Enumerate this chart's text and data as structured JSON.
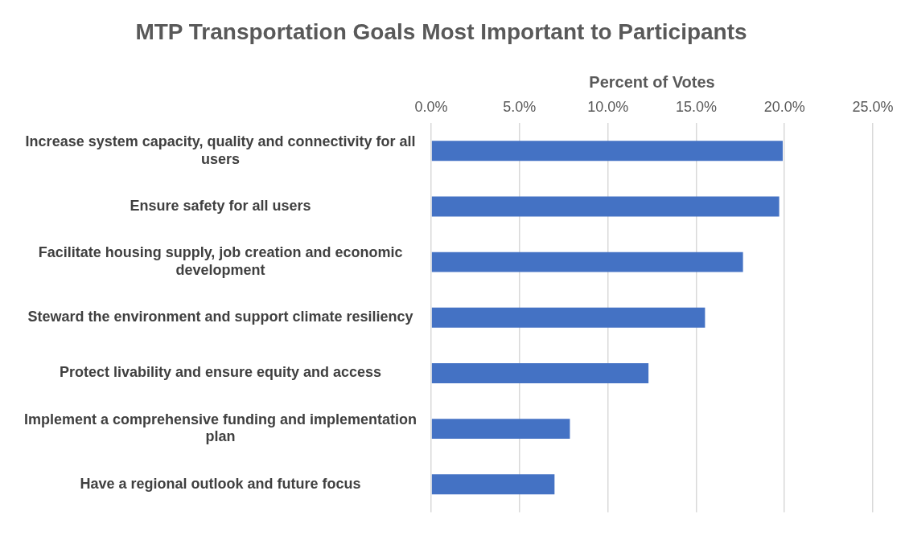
{
  "chart_data": {
    "type": "bar",
    "orientation": "horizontal",
    "title": "MTP Transportation Goals Most Important to Participants",
    "xlabel": "Percent of Votes",
    "categories": [
      "Increase system capacity, quality and connectivity for all users",
      "Ensure safety for all users",
      "Facilitate housing supply, job creation and economic development",
      "Steward the environment and support climate resiliency",
      "Protect livability and ensure equity and access",
      "Implement a comprehensive funding and implementation plan",
      "Have a regional outlook and future focus"
    ],
    "values": [
      19.9,
      19.7,
      17.65,
      15.5,
      12.3,
      7.85,
      6.98
    ],
    "color": "#4472c4",
    "xlim": [
      0,
      25
    ],
    "xticks": [
      {
        "value": 0,
        "label": "0.0%"
      },
      {
        "value": 5,
        "label": "5.0%"
      },
      {
        "value": 10,
        "label": "10.0%"
      },
      {
        "value": 15,
        "label": "15.0%"
      },
      {
        "value": 20,
        "label": "20.0%"
      },
      {
        "value": 25,
        "label": "25.0%"
      }
    ],
    "grid": "x",
    "legend": false
  }
}
